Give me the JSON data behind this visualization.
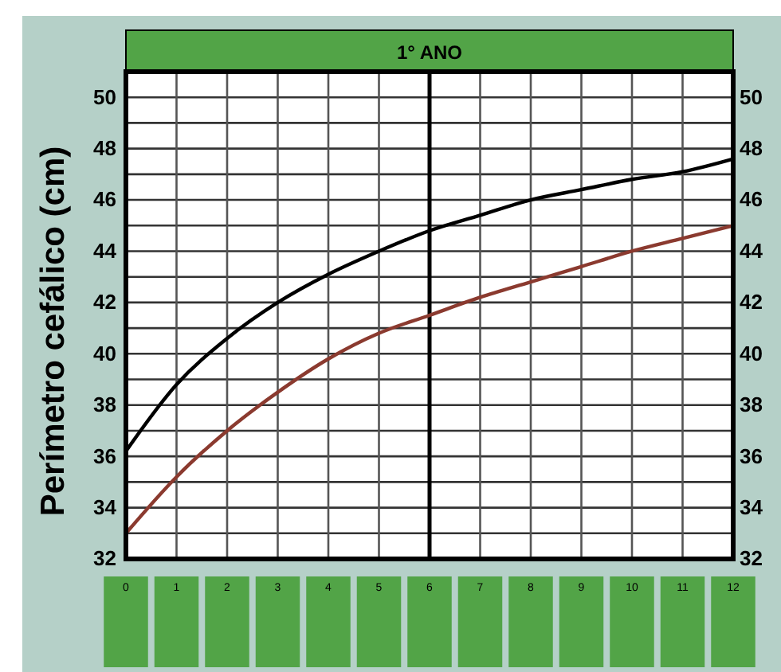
{
  "chart_data": {
    "type": "line",
    "title": "1° ANO",
    "ylabel": "Perímetro cefálico (cm)",
    "x": [
      0,
      1,
      2,
      3,
      4,
      5,
      6,
      7,
      8,
      9,
      10,
      11,
      12
    ],
    "series": [
      {
        "color": "#000000",
        "values": [
          36.2,
          38.8,
          40.6,
          42,
          43.1,
          44,
          44.8,
          45.4,
          46,
          46.4,
          46.8,
          47.1,
          47.6
        ]
      },
      {
        "color": "#8b3a2f",
        "values": [
          33,
          35.2,
          37,
          38.5,
          39.8,
          40.8,
          41.5,
          42.2,
          42.8,
          43.4,
          44,
          44.5,
          45
        ]
      }
    ],
    "xlim": [
      0,
      12
    ],
    "xticks": [
      0,
      1,
      2,
      3,
      4,
      5,
      6,
      7,
      8,
      9,
      10,
      11,
      12
    ],
    "ylim": [
      32,
      51
    ],
    "yticks": [
      32,
      {
        "value": 33,
        "label": null
      },
      34,
      {
        "value": 35,
        "label": null
      },
      36,
      {
        "value": 37,
        "label": null
      },
      38,
      {
        "value": 39,
        "label": null
      },
      40,
      {
        "value": 41,
        "label": null
      },
      42,
      {
        "value": 43,
        "label": null
      },
      44,
      {
        "value": 45,
        "label": null
      },
      46,
      {
        "value": 47,
        "label": null
      },
      48,
      {
        "value": 49,
        "label": null
      },
      50,
      {
        "value": 51,
        "label": null
      }
    ],
    "y2lim": [
      32,
      51
    ],
    "y2ticks": [
      32,
      34,
      36,
      38,
      40,
      42,
      44,
      46,
      48,
      50
    ],
    "ref_lines": [
      {
        "axis": "x",
        "value": 6,
        "color": "#000000"
      }
    ],
    "grid": true,
    "marker": "none",
    "line_style": "solid"
  }
}
